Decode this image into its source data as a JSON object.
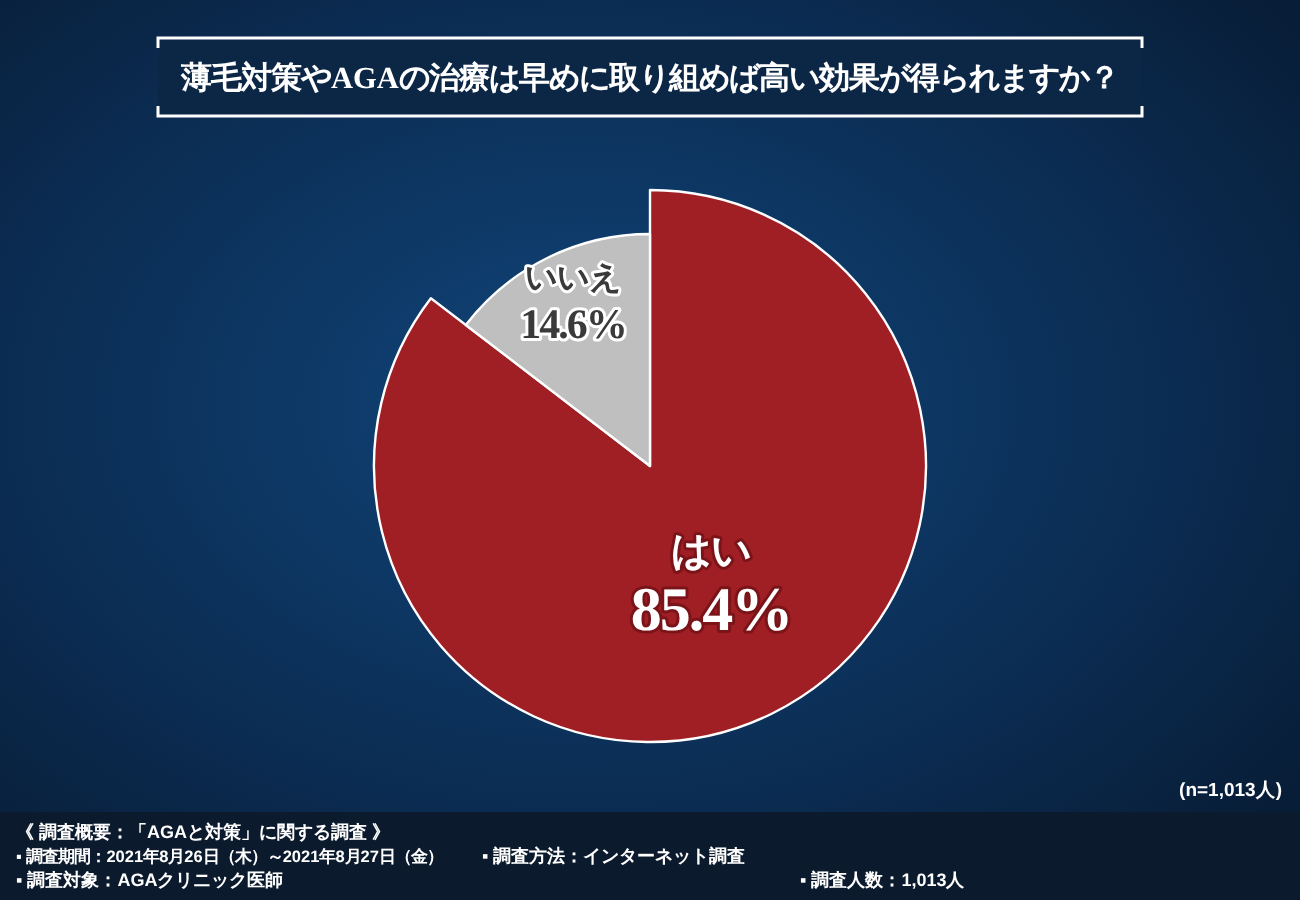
{
  "chart_data": {
    "type": "pie",
    "title": "薄毛対策やAGAの治療は早めに取り組めば高い効果が得られますか？",
    "categories": [
      "はい",
      "いいえ"
    ],
    "values": [
      85.4,
      14.6
    ],
    "colors": [
      "#a01f25",
      "#bfbfbf"
    ],
    "value_labels": [
      "85.4%",
      "14.6%"
    ],
    "annotations": [
      "(n=1,013人)",
      "《 調査概要：「AGAと対策」に関する調査 》",
      "▪ 調査期間：2021年8月26日（木）～2021年8月27日（金）",
      "▪ 調査方法：インターネット調査",
      "▪ 調査対象：AGAクリニック医師",
      "▪ 調査人数：1,013人"
    ]
  }
}
